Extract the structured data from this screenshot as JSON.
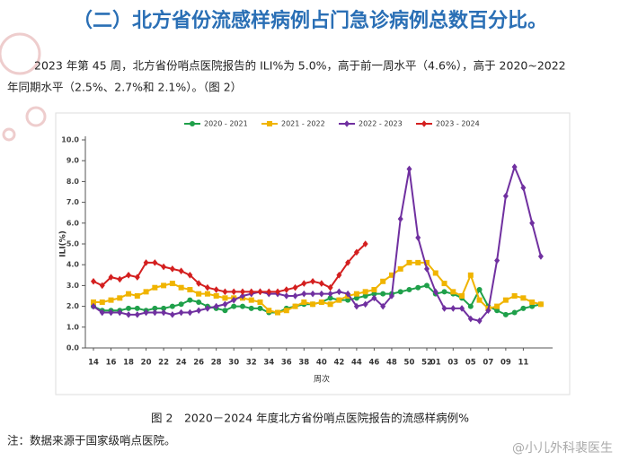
{
  "heading": "（二）北方省份流感样病例占门急诊病例总数百分比。",
  "paragraph": [
    "2023 年第 45 周，北方省份哨点医院报告的 ILI%为 5.0%，高于前一周水平（4.6%），高于 2020~2022",
    "年同期水平（2.5%、2.7%和 2.1%）。（图 2）"
  ],
  "chart_data": {
    "type": "line",
    "x_label": "周次",
    "y_label": "ILI(%)",
    "categories": [
      "14",
      null,
      "16",
      null,
      "18",
      null,
      "20",
      null,
      "22",
      null,
      "24",
      null,
      "26",
      null,
      "28",
      null,
      "30",
      null,
      "32",
      null,
      "34",
      null,
      "36",
      null,
      "38",
      null,
      "40",
      null,
      "42",
      null,
      "44",
      null,
      "46",
      null,
      "48",
      null,
      "50",
      null,
      "52",
      "01",
      null,
      "03",
      null,
      "05",
      null,
      "07",
      null,
      "09",
      null,
      "11",
      null,
      null
    ],
    "ylim": [
      0,
      10
    ],
    "yticks": [
      {
        "value": 0,
        "label": "0.0"
      },
      {
        "value": 1,
        "label": "1.0"
      },
      {
        "value": 2,
        "label": "2.0"
      },
      {
        "value": 3,
        "label": "3.0"
      },
      {
        "value": 4,
        "label": "4.0"
      },
      {
        "value": 5,
        "label": "5.0"
      },
      {
        "value": 6,
        "label": "6.0"
      },
      {
        "value": 7,
        "label": "7.0"
      },
      {
        "value": 8,
        "label": "8.0"
      },
      {
        "value": 9,
        "label": "9.0"
      },
      {
        "value": 10,
        "label": "10.0"
      }
    ],
    "legend": "top",
    "series": [
      {
        "name": "2020 - 2021",
        "color": "#1fa04a",
        "marker": "circle",
        "values": [
          2.0,
          1.8,
          1.8,
          1.8,
          1.9,
          1.9,
          1.8,
          1.9,
          1.9,
          2.0,
          2.1,
          2.3,
          2.2,
          2.0,
          1.9,
          1.8,
          2.0,
          2.0,
          1.9,
          1.9,
          1.7,
          1.7,
          1.9,
          2.0,
          2.1,
          2.1,
          2.2,
          2.4,
          2.3,
          2.3,
          2.4,
          2.5,
          2.6,
          2.6,
          2.6,
          2.7,
          2.8,
          2.9,
          3.0,
          2.6,
          2.7,
          2.6,
          2.4,
          2.0,
          2.8,
          2.0,
          1.8,
          1.6,
          1.7,
          1.9,
          2.0,
          2.1
        ]
      },
      {
        "name": "2021 - 2022",
        "color": "#f0b400",
        "marker": "square",
        "values": [
          2.2,
          2.2,
          2.3,
          2.4,
          2.6,
          2.5,
          2.7,
          2.9,
          3.0,
          3.1,
          2.9,
          2.8,
          2.6,
          2.6,
          2.5,
          2.4,
          2.4,
          2.4,
          2.3,
          2.2,
          1.8,
          1.7,
          1.8,
          2.0,
          2.2,
          2.1,
          2.2,
          2.1,
          2.3,
          2.5,
          2.6,
          2.7,
          2.8,
          3.2,
          3.5,
          3.8,
          4.1,
          4.1,
          4.1,
          3.6,
          3.1,
          2.7,
          2.5,
          3.5,
          2.3,
          1.9,
          2.0,
          2.3,
          2.5,
          2.4,
          2.2,
          2.1
        ]
      },
      {
        "name": "2022 - 2023",
        "color": "#7030a0",
        "marker": "diamond",
        "values": [
          2.0,
          1.7,
          1.7,
          1.7,
          1.6,
          1.6,
          1.7,
          1.7,
          1.7,
          1.6,
          1.7,
          1.7,
          1.8,
          1.9,
          2.0,
          2.1,
          2.3,
          2.5,
          2.6,
          2.7,
          2.6,
          2.6,
          2.5,
          2.5,
          2.6,
          2.6,
          2.6,
          2.6,
          2.7,
          2.6,
          2.0,
          2.1,
          2.4,
          2.0,
          2.5,
          6.2,
          8.6,
          5.3,
          3.8,
          2.7,
          1.9,
          1.9,
          1.9,
          1.4,
          1.3,
          1.8,
          4.2,
          7.3,
          8.7,
          7.7,
          6.0,
          4.4
        ]
      },
      {
        "name": "2023 - 2024",
        "color": "#d41f1f",
        "marker": "diamond",
        "values": [
          3.2,
          3.0,
          3.4,
          3.3,
          3.5,
          3.4,
          4.1,
          4.1,
          3.9,
          3.8,
          3.7,
          3.5,
          3.1,
          2.9,
          2.8,
          2.7,
          2.7,
          2.7,
          2.7,
          2.7,
          2.7,
          2.7,
          2.8,
          2.9,
          3.1,
          3.2,
          3.1,
          2.9,
          3.5,
          4.1,
          4.6,
          5.0,
          null,
          null,
          null,
          null,
          null,
          null,
          null,
          null,
          null,
          null,
          null,
          null,
          null,
          null,
          null,
          null,
          null,
          null,
          null,
          null
        ]
      }
    ]
  },
  "caption": "图 2　2020－2024 年度北方省份哨点医院报告的流感样病例%",
  "note": "注：数据来源于国家级哨点医院。",
  "watermark": "@小儿外科裴医生"
}
